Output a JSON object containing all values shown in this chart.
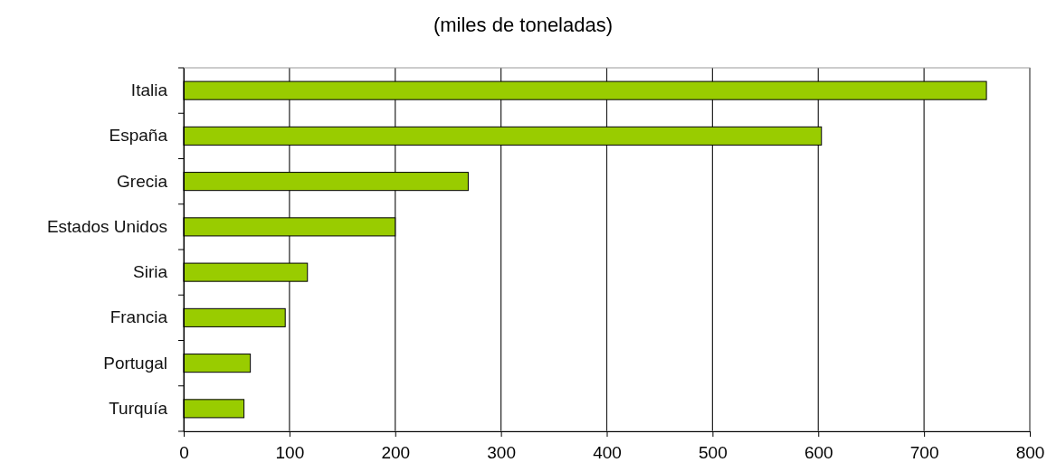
{
  "chart_data": {
    "type": "bar",
    "orientation": "horizontal",
    "title": "(miles de toneladas)",
    "categories": [
      "Italia",
      "España",
      "Grecia",
      "Estados Unidos",
      "Siria",
      "Francia",
      "Portugal",
      "Turquía"
    ],
    "values": [
      759,
      603,
      269,
      200,
      117,
      96,
      63,
      57
    ],
    "color": "#99cc00",
    "xlim": [
      0,
      800
    ],
    "xticks": [
      0,
      100,
      200,
      300,
      400,
      500,
      600,
      700,
      800
    ],
    "grid": "x"
  }
}
